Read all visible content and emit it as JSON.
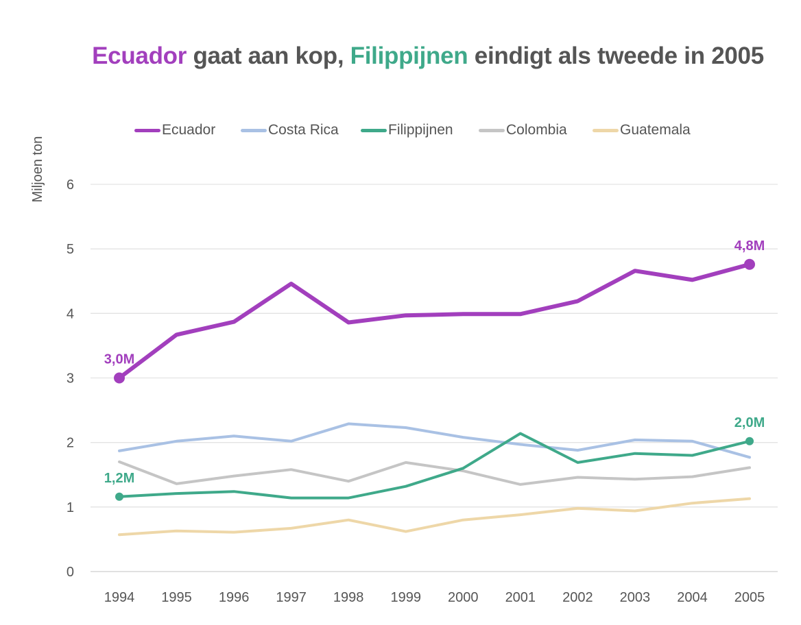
{
  "title": {
    "part1": "Ecuador",
    "part2": " gaat aan kop, ",
    "part3": "Filippijnen",
    "part4": " eindigt als tweede in 2005"
  },
  "colors": {
    "Ecuador": "#a23fbd",
    "Costa Rica": "#a9c1e4",
    "Filippijnen": "#3fa98a",
    "Colombia": "#c5c5c5",
    "Guatemala": "#eed7a8",
    "grid": "#e3e3e3",
    "text": "#555555"
  },
  "chart_data": {
    "type": "line",
    "title": "Ecuador gaat aan kop, Filippijnen eindigt als tweede in 2005",
    "xlabel": "",
    "ylabel": "Miljoen ton",
    "ylim": [
      0,
      6
    ],
    "yticks": [
      "0",
      "1",
      "2",
      "3",
      "4",
      "5",
      "6"
    ],
    "grid": true,
    "legend_position": "top",
    "categories": [
      "1994",
      "1995",
      "1996",
      "1997",
      "1998",
      "1999",
      "2000",
      "2001",
      "2002",
      "2003",
      "2004",
      "2005"
    ],
    "series": [
      {
        "name": "Ecuador",
        "values": [
          3.0,
          3.67,
          3.87,
          4.46,
          3.86,
          3.97,
          3.99,
          3.99,
          4.19,
          4.66,
          4.52,
          4.76
        ]
      },
      {
        "name": "Costa Rica",
        "values": [
          1.87,
          2.02,
          2.1,
          2.02,
          2.29,
          2.23,
          2.08,
          1.97,
          1.88,
          2.04,
          2.02,
          1.77
        ]
      },
      {
        "name": "Filippijnen",
        "values": [
          1.16,
          1.21,
          1.24,
          1.14,
          1.14,
          1.32,
          1.6,
          2.14,
          1.69,
          1.83,
          1.8,
          2.02
        ]
      },
      {
        "name": "Colombia",
        "values": [
          1.7,
          1.36,
          1.48,
          1.58,
          1.4,
          1.69,
          1.56,
          1.35,
          1.46,
          1.43,
          1.47,
          1.61
        ]
      },
      {
        "name": "Guatemala",
        "values": [
          0.57,
          0.63,
          0.61,
          0.67,
          0.8,
          0.62,
          0.8,
          0.88,
          0.98,
          0.94,
          1.06,
          1.13
        ]
      }
    ],
    "annotations": [
      {
        "series": "Ecuador",
        "category": "1994",
        "text": "3,0M"
      },
      {
        "series": "Ecuador",
        "category": "2005",
        "text": "4,8M"
      },
      {
        "series": "Filippijnen",
        "category": "1994",
        "text": "1,2M"
      },
      {
        "series": "Filippijnen",
        "category": "2005",
        "text": "2,0M"
      }
    ]
  }
}
